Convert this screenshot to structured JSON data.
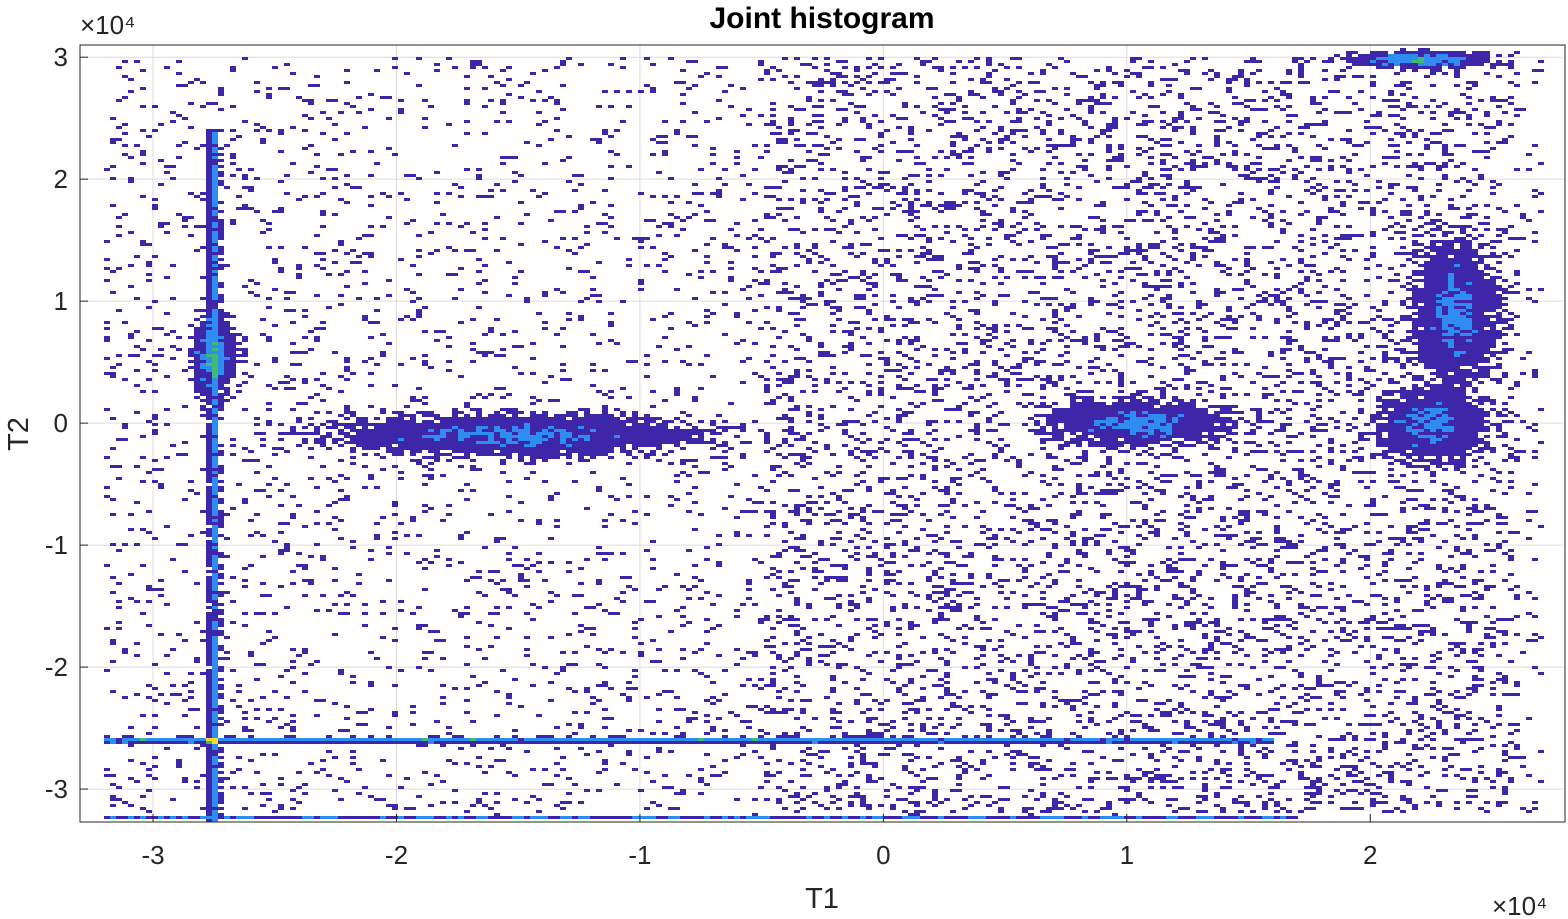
{
  "chart_data": {
    "type": "heatmap",
    "title": "Joint histogram",
    "xlabel": "T1",
    "ylabel": "T2",
    "x_exponent": "×10⁴",
    "y_exponent": "×10⁴",
    "xlim": [
      -3.3,
      2.8
    ],
    "ylim": [
      -3.27,
      3.1
    ],
    "xticks": [
      -3,
      -2,
      -1,
      0,
      1,
      2
    ],
    "yticks": [
      -3,
      -2,
      -1,
      0,
      1,
      2,
      3
    ],
    "xtick_labels": [
      "-3",
      "-2",
      "-1",
      "0",
      "1",
      "2"
    ],
    "ytick_labels": [
      "-3",
      "-2",
      "-1",
      "0",
      "1",
      "2",
      "3"
    ],
    "grid": true,
    "colormap": "parula",
    "colors": {
      "low": "#3e26a8",
      "mid": "#2f8cf0",
      "high": "#3fbc73",
      "peak": "#fadd26",
      "grid": "#dcdcdc",
      "axis": "#262626"
    },
    "features": [
      {
        "name": "vertical band",
        "x": -2.75,
        "y_range": [
          -3.27,
          2.4
        ]
      },
      {
        "name": "horizontal band",
        "y": -2.6,
        "x_range": [
          -3.2,
          1.6
        ]
      },
      {
        "name": "bottom edge band",
        "y": -3.24,
        "x_range": [
          -3.2,
          1.7
        ]
      },
      {
        "name": "cluster",
        "x": 1.05,
        "y": 0.0,
        "spread": [
          0.45,
          0.2
        ]
      },
      {
        "name": "cluster",
        "x": 2.25,
        "y": 0.0,
        "spread": [
          0.25,
          0.35
        ]
      },
      {
        "name": "cluster",
        "x": 2.35,
        "y": 0.9,
        "spread": [
          0.2,
          0.7
        ]
      },
      {
        "name": "cluster",
        "x": 2.2,
        "y": 2.98,
        "spread": [
          0.35,
          0.08
        ]
      },
      {
        "name": "cluster",
        "x": -2.75,
        "y": 0.55,
        "spread": [
          0.1,
          0.4
        ]
      },
      {
        "name": "cluster",
        "x": -1.5,
        "y": -0.1,
        "spread": [
          0.9,
          0.2
        ]
      }
    ]
  }
}
